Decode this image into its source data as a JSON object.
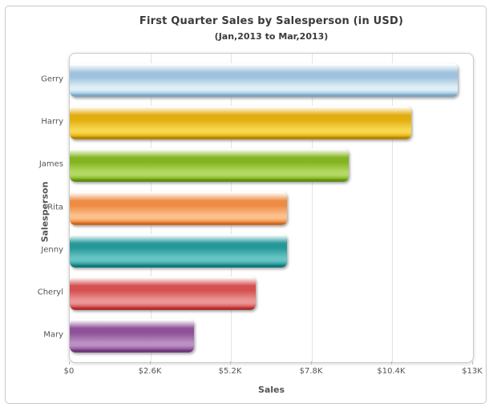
{
  "window": {
    "background": "#ffffff",
    "frame_border_color": "#c8c8c8"
  },
  "chart_data": {
    "type": "bar",
    "orientation": "horizontal",
    "title": "First Quarter Sales by Salesperson (in USD)",
    "subtitle": "(Jan,2013 to Mar,2013)",
    "xlabel": "Sales",
    "ylabel": "Salesperson",
    "categories": [
      "Gerry",
      "Harry",
      "James",
      "Rita",
      "Jenny",
      "Cheryl",
      "Mary"
    ],
    "values": [
      12500,
      11000,
      9000,
      7000,
      7000,
      6000,
      4000
    ],
    "xlim": [
      0,
      13000
    ],
    "x_ticks": [
      {
        "label": "$0",
        "value": 0
      },
      {
        "label": "$2.6K",
        "value": 2600
      },
      {
        "label": "$5.2K",
        "value": 5200
      },
      {
        "label": "$7.8K",
        "value": 7800
      },
      {
        "label": "$10.4K",
        "value": 10400
      },
      {
        "label": "$13K",
        "value": 13000
      }
    ],
    "grid": true,
    "legend": false,
    "gridline_color": "#e4e4e4",
    "bar_style": "glossy-cylinder",
    "bar_colors": [
      {
        "name": "light-blue",
        "base": "#9fc3de",
        "light": "#ddeef8",
        "dark": "#7ea6c2"
      },
      {
        "name": "gold",
        "base": "#e2ad0e",
        "light": "#f8d74f",
        "dark": "#b5860a"
      },
      {
        "name": "yellow-green",
        "base": "#84b421",
        "light": "#b4d963",
        "dark": "#628f16"
      },
      {
        "name": "orange",
        "base": "#ee8c44",
        "light": "#fbc08b",
        "dark": "#cf6a22"
      },
      {
        "name": "teal",
        "base": "#27989a",
        "light": "#67c3c3",
        "dark": "#15797a"
      },
      {
        "name": "red",
        "base": "#d55050",
        "light": "#eb9595",
        "dark": "#ae3232"
      },
      {
        "name": "purple",
        "base": "#8f5299",
        "light": "#ba8ec3",
        "dark": "#6d3b77"
      }
    ],
    "text_colors": {
      "title": "#3a3a3a",
      "axis_labels": "#555555",
      "tick_labels": "#555555"
    }
  }
}
